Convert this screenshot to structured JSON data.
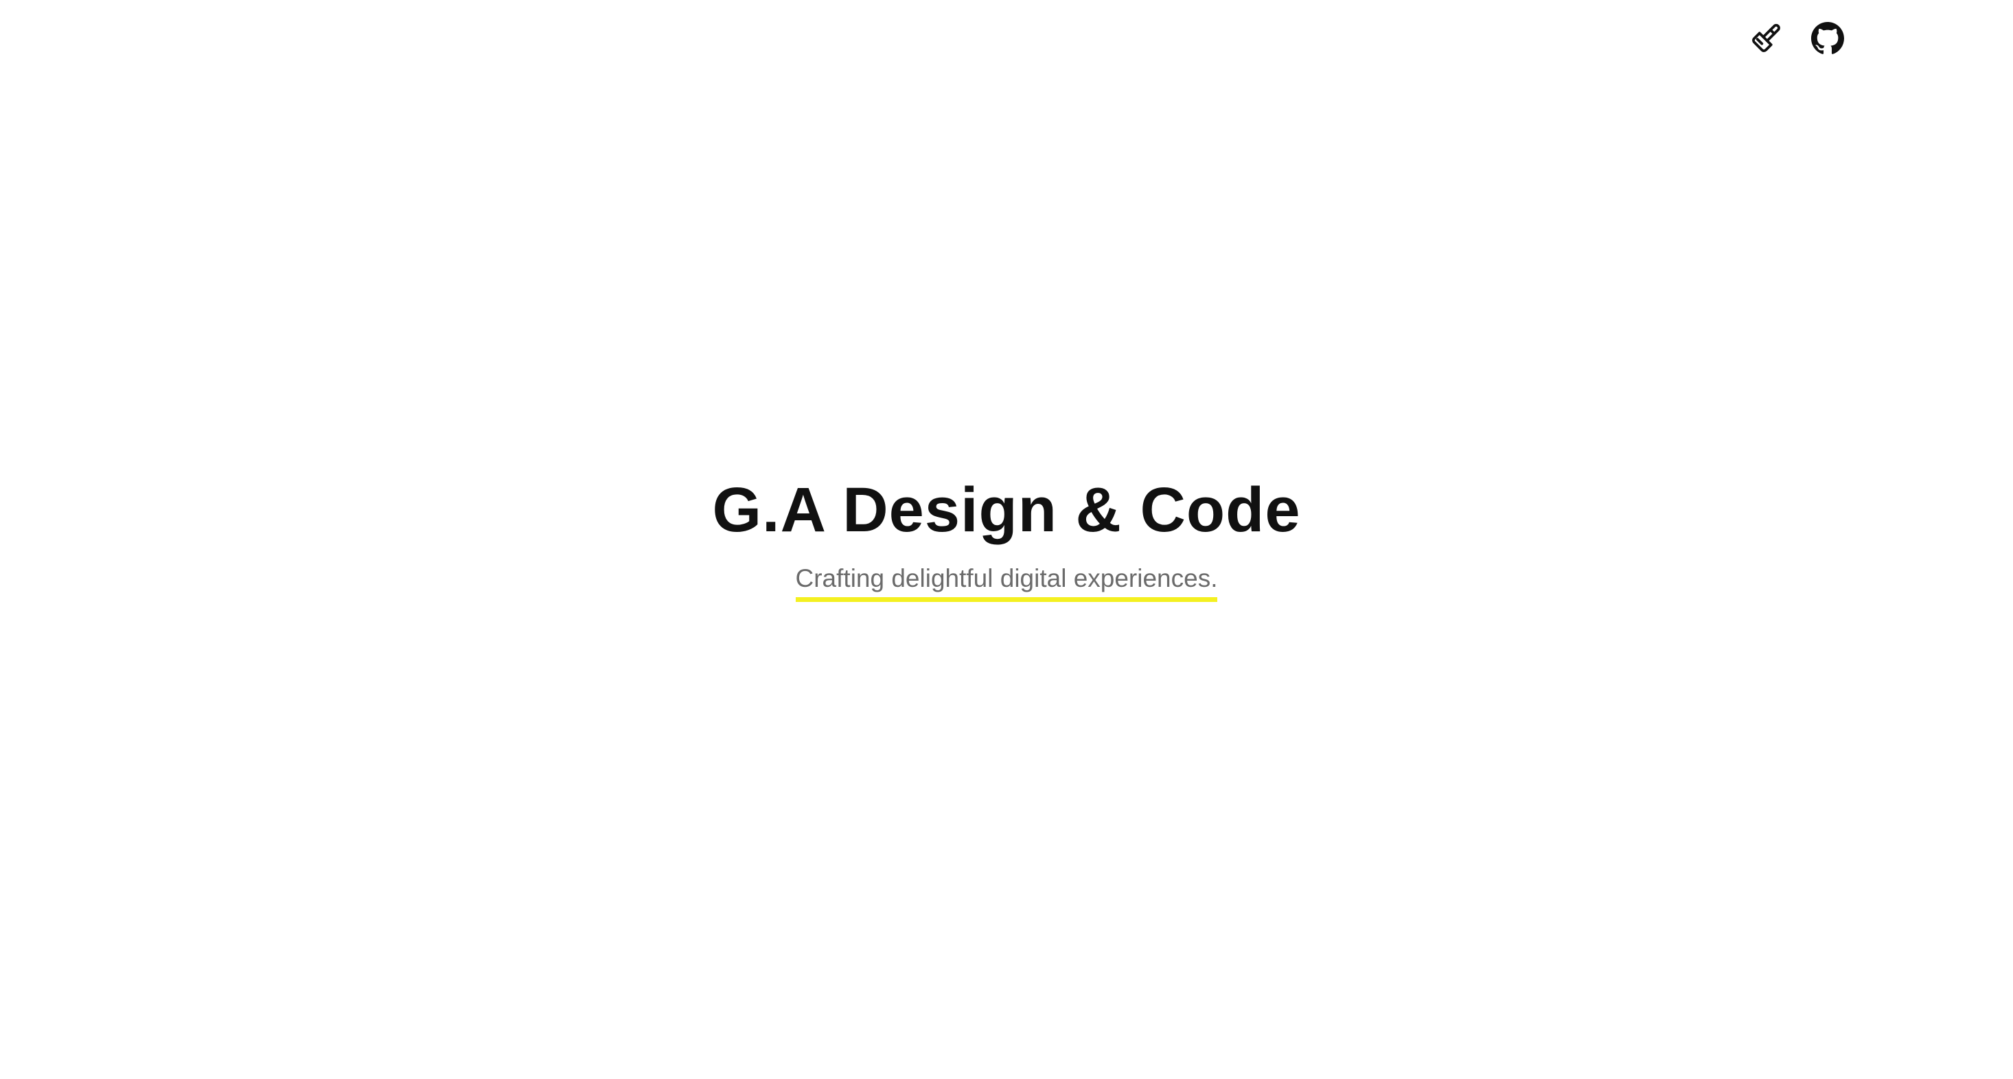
{
  "nav": {
    "icons": [
      {
        "name": "paintbrush-icon"
      },
      {
        "name": "github-icon"
      }
    ]
  },
  "hero": {
    "title": "G.A Design & Code",
    "tagline": "Crafting delightful digital experiences."
  },
  "colors": {
    "background": "#ffffff",
    "title": "#111111",
    "tagline": "#6b6b6b",
    "highlight": "#f4f020"
  }
}
